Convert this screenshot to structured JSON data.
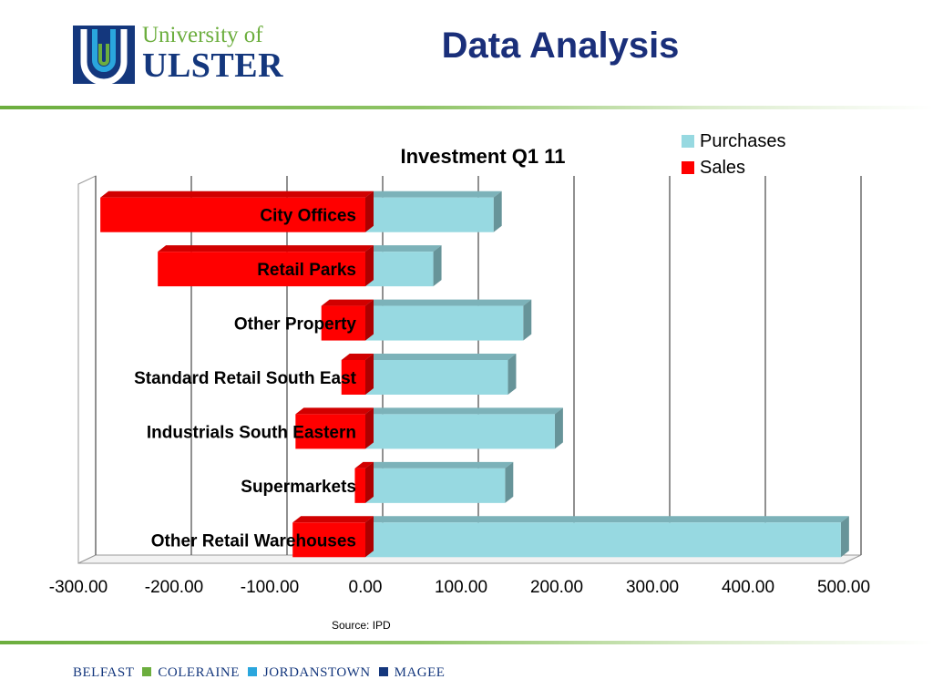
{
  "slide": {
    "title": "Data Analysis",
    "source": "Source: IPD"
  },
  "logo": {
    "line1": "University of",
    "line2": "ULSTER",
    "colors": {
      "navy": "#14377d",
      "blue": "#2aa6dd",
      "green": "#6cae3e"
    }
  },
  "footer": {
    "campuses": [
      "BELFAST",
      "COLERAINE",
      "JORDANSTOWN",
      "MAGEE"
    ],
    "separator_colors": [
      "#6cae3e",
      "#2aa6dd",
      "#14377d"
    ]
  },
  "chart_data": {
    "type": "bar",
    "orientation": "horizontal",
    "stacked": true,
    "three_d": true,
    "title": "Investment Q1 11",
    "categories": [
      "City Offices",
      "Retail Parks",
      "Other Property",
      "Standard Retail South East",
      "Industrials South Eastern",
      "Supermarkets",
      "Other Retail Warehouses"
    ],
    "series": [
      {
        "name": "Purchases",
        "color": "#97d9e1",
        "values": [
          134,
          71,
          165,
          149,
          198,
          146,
          497
        ]
      },
      {
        "name": "Sales",
        "color": "#ff0000",
        "values": [
          -277,
          -217,
          -46,
          -25,
          -73,
          -11,
          -76
        ]
      }
    ],
    "xlim": [
      -300,
      500
    ],
    "x_ticks": [
      "-300.00",
      "-200.00",
      "-100.00",
      "0.00",
      "100.00",
      "200.00",
      "300.00",
      "400.00",
      "500.00"
    ],
    "grid": true,
    "legend_position": "top-right"
  }
}
